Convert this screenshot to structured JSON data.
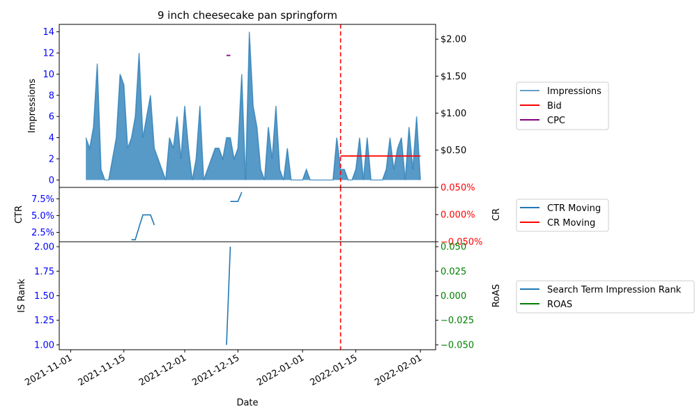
{
  "title": "9 inch cheesecake pan springform",
  "xlabel": "Date",
  "x_ticks": [
    "2021-11-01",
    "2021-11-15",
    "2021-12-01",
    "2021-12-15",
    "2022-01-01",
    "2022-01-15",
    "2022-02-01"
  ],
  "colors": {
    "impressions": "#1f77b4",
    "bid": "#ff0000",
    "cpc": "#800080",
    "ctr": "#1f77b4",
    "cr": "#ff0000",
    "is_rank": "#1f77b4",
    "roas": "#008000",
    "left_ticks": "#0000ff",
    "vline": "#ff0000"
  },
  "chart_data": [
    {
      "type": "area",
      "ylabel": "Impressions",
      "y2label": "",
      "ylim": [
        -0.7,
        14.7
      ],
      "y2lim": [
        -0.005,
        2.2
      ],
      "y_ticks": [
        0,
        2,
        4,
        6,
        8,
        10,
        12,
        14
      ],
      "y2_ticks": [
        0.5,
        1.0,
        1.5,
        2.0
      ],
      "y2_tick_labels": [
        "$0.50",
        "$1.00",
        "$1.50",
        "$2.00"
      ],
      "vline_x": "2022-01-11",
      "series": [
        {
          "name": "Impressions",
          "x": [
            "2021-11-05",
            "2021-11-06",
            "2021-11-07",
            "2021-11-08",
            "2021-11-09",
            "2021-11-10",
            "2021-11-11",
            "2021-11-12",
            "2021-11-13",
            "2021-11-14",
            "2021-11-15",
            "2021-11-16",
            "2021-11-17",
            "2021-11-18",
            "2021-11-19",
            "2021-11-20",
            "2021-11-21",
            "2021-11-22",
            "2021-11-23",
            "2021-11-24",
            "2021-11-25",
            "2021-11-26",
            "2021-11-27",
            "2021-11-28",
            "2021-11-29",
            "2021-11-30",
            "2021-12-01",
            "2021-12-02",
            "2021-12-03",
            "2021-12-04",
            "2021-12-05",
            "2021-12-06",
            "2021-12-07",
            "2021-12-08",
            "2021-12-09",
            "2021-12-10",
            "2021-12-11",
            "2021-12-12",
            "2021-12-13",
            "2021-12-14",
            "2021-12-15",
            "2021-12-16",
            "2021-12-17",
            "2021-12-18",
            "2021-12-19",
            "2021-12-20",
            "2021-12-21",
            "2021-12-22",
            "2021-12-23",
            "2021-12-24",
            "2021-12-25",
            "2021-12-26",
            "2021-12-27",
            "2021-12-28",
            "2021-12-29",
            "2021-12-30",
            "2021-12-31",
            "2022-01-01",
            "2022-01-02",
            "2022-01-03",
            "2022-01-04",
            "2022-01-05",
            "2022-01-06",
            "2022-01-07",
            "2022-01-08",
            "2022-01-09",
            "2022-01-10",
            "2022-01-11",
            "2022-01-12",
            "2022-01-13",
            "2022-01-14",
            "2022-01-15",
            "2022-01-16",
            "2022-01-17",
            "2022-01-18",
            "2022-01-19",
            "2022-01-20",
            "2022-01-21",
            "2022-01-22",
            "2022-01-23",
            "2022-01-24",
            "2022-01-25",
            "2022-01-26",
            "2022-01-27",
            "2022-01-28",
            "2022-01-29",
            "2022-01-30",
            "2022-01-31",
            "2022-02-01"
          ],
          "values": [
            4,
            3,
            5,
            11,
            1,
            0,
            0,
            2,
            4,
            10,
            9,
            3,
            4,
            6,
            12,
            4,
            6,
            8,
            3,
            2,
            1,
            0,
            4,
            3,
            6,
            2,
            7,
            3,
            0,
            2,
            7,
            0,
            1,
            2,
            3,
            3,
            2,
            4,
            4,
            2,
            3,
            10,
            0,
            14,
            7,
            5,
            1,
            0,
            5,
            2,
            7,
            1,
            0,
            3,
            0,
            0,
            0,
            0,
            1,
            0,
            0,
            0,
            0,
            0,
            0,
            0,
            4,
            1,
            1,
            0,
            0,
            1,
            4,
            0,
            4,
            0,
            0,
            0,
            0,
            1,
            4,
            1,
            3,
            4,
            0,
            5,
            1,
            6,
            0
          ]
        },
        {
          "name": "Bid",
          "axis": "right",
          "x": [
            "2022-01-11",
            "2022-02-01"
          ],
          "values": [
            0.42,
            0.42
          ]
        },
        {
          "name": "CPC",
          "axis": "right",
          "x": [
            "2021-12-12",
            "2021-12-13"
          ],
          "values": [
            1.78,
            1.78
          ]
        }
      ]
    },
    {
      "type": "line",
      "ylabel": "CTR",
      "y2label": "CR",
      "ylim": [
        1.1,
        9.2
      ],
      "y2lim": [
        -0.05,
        0.05
      ],
      "y_ticks": [
        2.5,
        5.0,
        7.5
      ],
      "y_tick_labels": [
        "2.5%",
        "5.0%",
        "7.5%"
      ],
      "y2_ticks": [
        -0.05,
        0.0,
        0.05
      ],
      "y2_tick_labels": [
        "−0.050%",
        "0.000%",
        "0.050%"
      ],
      "vline_x": "2022-01-11",
      "series": [
        {
          "name": "CTR Moving",
          "segments": [
            {
              "x": [
                "2021-11-17",
                "2021-11-18",
                "2021-11-19",
                "2021-11-20",
                "2021-11-21",
                "2021-11-22",
                "2021-11-23"
              ],
              "values": [
                1.4,
                1.4,
                3.3,
                5.1,
                5.1,
                5.1,
                3.6
              ]
            },
            {
              "x": [
                "2021-12-13",
                "2021-12-14",
                "2021-12-15",
                "2021-12-16"
              ],
              "values": [
                7.1,
                7.1,
                7.1,
                8.5
              ]
            }
          ]
        },
        {
          "name": "CR Moving",
          "segments": []
        }
      ]
    },
    {
      "type": "line",
      "ylabel": "IS Rank",
      "y2label": "RoAS",
      "ylim": [
        0.95,
        2.05
      ],
      "y2lim": [
        -0.055,
        0.055
      ],
      "y_ticks": [
        1.0,
        1.25,
        1.5,
        1.75,
        2.0
      ],
      "y_tick_labels": [
        "1.00",
        "1.25",
        "1.50",
        "1.75",
        "2.00"
      ],
      "y2_ticks": [
        -0.05,
        -0.025,
        0.0,
        0.025,
        0.05
      ],
      "y2_tick_labels": [
        "−0.050",
        "−0.025",
        "0.000",
        "0.025",
        "0.050"
      ],
      "vline_x": "2022-01-11",
      "series": [
        {
          "name": "Search Term Impression Rank",
          "segments": [
            {
              "x": [
                "2021-12-12",
                "2021-12-13"
              ],
              "values": [
                1.0,
                2.0
              ]
            }
          ]
        },
        {
          "name": "ROAS",
          "segments": []
        }
      ]
    }
  ]
}
